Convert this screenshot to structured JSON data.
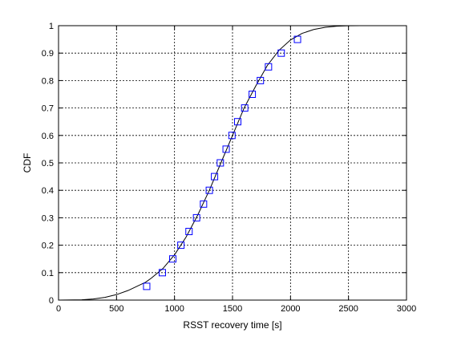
{
  "chart_data": {
    "type": "line",
    "title": "",
    "xlabel": "RSST recovery time [s]",
    "ylabel": "CDF",
    "xlim": [
      0,
      3000
    ],
    "ylim": [
      0,
      1
    ],
    "xticks": [
      0,
      500,
      1000,
      1500,
      2000,
      2500,
      3000
    ],
    "yticks": [
      0,
      0.1,
      0.2,
      0.3,
      0.4,
      0.5,
      0.6,
      0.7,
      0.8,
      0.9,
      1
    ],
    "grid": true,
    "legend": "none",
    "colors": {
      "fitted_line": "#000000",
      "markers": "#0000ff"
    },
    "series": [
      {
        "kind": "line",
        "x": [
          0,
          200,
          300,
          400,
          500,
          600,
          700,
          750,
          800,
          900,
          1000,
          1100,
          1200,
          1300,
          1400,
          1500,
          1600,
          1700,
          1800,
          1900,
          2000,
          2100,
          2200,
          2300,
          2400,
          2500,
          2600,
          3000
        ],
        "y": [
          0,
          0.001,
          0.004,
          0.01,
          0.02,
          0.035,
          0.055,
          0.065,
          0.08,
          0.115,
          0.165,
          0.23,
          0.31,
          0.4,
          0.5,
          0.6,
          0.7,
          0.78,
          0.855,
          0.91,
          0.948,
          0.972,
          0.986,
          0.994,
          0.998,
          0.9995,
          1.0,
          1.0
        ]
      },
      {
        "kind": "markers",
        "marker": "square",
        "x": [
          760,
          895,
          985,
          1055,
          1125,
          1190,
          1250,
          1300,
          1345,
          1395,
          1445,
          1495,
          1545,
          1605,
          1670,
          1740,
          1810,
          1920,
          2060
        ],
        "y": [
          0.05,
          0.1,
          0.15,
          0.2,
          0.25,
          0.3,
          0.35,
          0.4,
          0.45,
          0.5,
          0.55,
          0.6,
          0.65,
          0.7,
          0.75,
          0.8,
          0.85,
          0.9,
          0.95
        ]
      }
    ]
  }
}
